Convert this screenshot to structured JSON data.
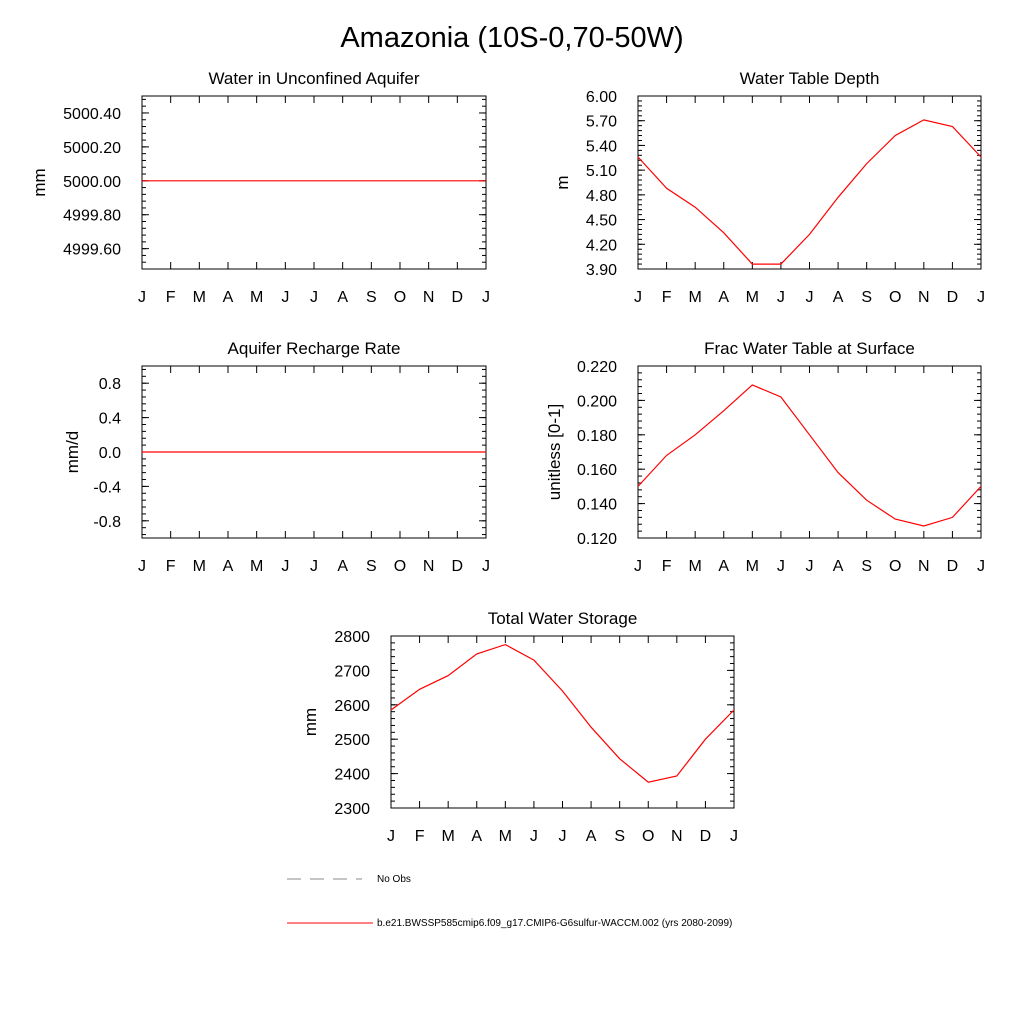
{
  "title": "Amazonia (10S-0,70-50W)",
  "colors": {
    "series": "#ff0000",
    "obs": "#888888",
    "axis": "#000000"
  },
  "legend": {
    "obs_label": "No Obs",
    "model_label": "b.e21.BWSSP585cmip6.f09_g17.CMIP6-G6sulfur-WACCM.002 (yrs 2080-2099)"
  },
  "chart_data": [
    {
      "type": "line",
      "title": "Water in Unconfined Aquifer",
      "ylabel": "mm",
      "categories": [
        "J",
        "F",
        "M",
        "A",
        "M",
        "J",
        "J",
        "A",
        "S",
        "O",
        "N",
        "D",
        "J"
      ],
      "yticks": [
        "5000.40",
        "5000.20",
        "5000.00",
        "4999.80",
        "4999.60"
      ],
      "ylim": [
        4999.48,
        5000.5
      ],
      "series": [
        {
          "values": [
            5000,
            5000,
            5000,
            5000,
            5000,
            5000,
            5000,
            5000,
            5000,
            5000,
            5000,
            5000,
            5000
          ]
        }
      ]
    },
    {
      "type": "line",
      "title": "Water Table Depth",
      "ylabel": "m",
      "categories": [
        "J",
        "F",
        "M",
        "A",
        "M",
        "J",
        "J",
        "A",
        "S",
        "O",
        "N",
        "D",
        "J"
      ],
      "yticks": [
        "6.00",
        "5.70",
        "5.40",
        "5.10",
        "4.80",
        "4.50",
        "4.20",
        "3.90"
      ],
      "ylim": [
        3.9,
        6.0
      ],
      "series": [
        {
          "values": [
            5.26,
            4.88,
            4.65,
            4.34,
            3.96,
            3.96,
            4.32,
            4.77,
            5.18,
            5.52,
            5.71,
            5.63,
            5.26
          ]
        }
      ]
    },
    {
      "type": "line",
      "title": "Aquifer Recharge Rate",
      "ylabel": "mm/d",
      "categories": [
        "J",
        "F",
        "M",
        "A",
        "M",
        "J",
        "J",
        "A",
        "S",
        "O",
        "N",
        "D",
        "J"
      ],
      "yticks": [
        "0.8",
        "0.4",
        "0.0",
        "-0.4",
        "-0.8"
      ],
      "ylim": [
        -1.0,
        1.0
      ],
      "series": [
        {
          "values": [
            0,
            0,
            0,
            0,
            0,
            0,
            0,
            0,
            0,
            0,
            0,
            0,
            0
          ]
        }
      ]
    },
    {
      "type": "line",
      "title": "Frac Water Table at Surface",
      "ylabel": "unitless [0-1]",
      "categories": [
        "J",
        "F",
        "M",
        "A",
        "M",
        "J",
        "J",
        "A",
        "S",
        "O",
        "N",
        "D",
        "J"
      ],
      "yticks": [
        "0.220",
        "0.200",
        "0.180",
        "0.160",
        "0.140",
        "0.120"
      ],
      "ylim": [
        0.12,
        0.22
      ],
      "series": [
        {
          "values": [
            0.15,
            0.168,
            0.18,
            0.194,
            0.209,
            0.202,
            0.18,
            0.158,
            0.142,
            0.131,
            0.127,
            0.132,
            0.15
          ]
        }
      ]
    },
    {
      "type": "line",
      "title": "Total Water Storage",
      "ylabel": "mm",
      "categories": [
        "J",
        "F",
        "M",
        "A",
        "M",
        "J",
        "J",
        "A",
        "S",
        "O",
        "N",
        "D",
        "J"
      ],
      "yticks": [
        "2800",
        "2700",
        "2600",
        "2500",
        "2400",
        "2300"
      ],
      "ylim": [
        2300,
        2800
      ],
      "series": [
        {
          "values": [
            2585,
            2645,
            2685,
            2748,
            2775,
            2730,
            2640,
            2535,
            2443,
            2375,
            2393,
            2500,
            2585
          ]
        }
      ]
    }
  ]
}
